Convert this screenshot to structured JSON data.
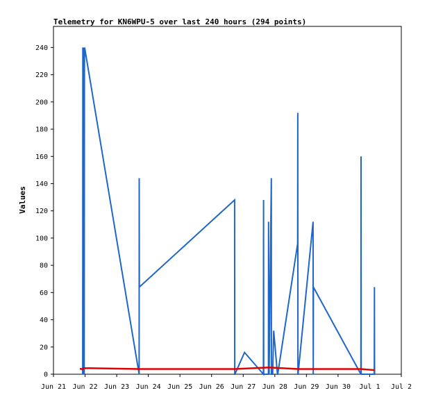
{
  "chart_data": {
    "type": "line",
    "title": "Telemetry for KN6WPU-5 over last 240 hours (294 points)",
    "xlabel": "",
    "ylabel": "Values",
    "xlim": [
      "2023-06-21",
      "2023-07-02"
    ],
    "ylim": [
      0,
      250
    ],
    "x_tick_labels": [
      "Jun 21",
      "Jun 22",
      "Jun 23",
      "Jun 24",
      "Jun 25",
      "Jun 26",
      "Jun 27",
      "Jun 28",
      "Jun 29",
      "Jun 30",
      "Jul 1",
      "Jul 2"
    ],
    "y_ticks": [
      0,
      20,
      40,
      60,
      80,
      100,
      120,
      140,
      160,
      180,
      200,
      220,
      240
    ],
    "grid": false,
    "legend": "none",
    "series": [
      {
        "color": "#1e66c8",
        "x": [
          "2023-06-21T22:10",
          "2023-06-21T22:14",
          "2023-06-21T22:18",
          "2023-06-21T22:22",
          "2023-06-21T22:26",
          "2023-06-21T22:30",
          "2023-06-21T22:40",
          "2023-06-21T22:50",
          "2023-06-21T23:00",
          "2023-06-21T23:05",
          "2023-06-21T23:10",
          "2023-06-21T23:15",
          "2023-06-21T23:20",
          "2023-06-21T23:30",
          "2023-06-21T23:40",
          "2023-06-23T17:00",
          "2023-06-23T17:06",
          "2023-06-23T17:12",
          "2023-06-26T17:30",
          "2023-06-26T17:36",
          "2023-06-26T17:42",
          "2023-06-27T01:00",
          "2023-06-27T15:20",
          "2023-06-27T15:26",
          "2023-06-27T15:32",
          "2023-06-27T19:10",
          "2023-06-27T19:16",
          "2023-06-27T19:40",
          "2023-06-27T21:20",
          "2023-06-27T21:26",
          "2023-06-27T22:20",
          "2023-06-27T23:10",
          "2023-06-28T02:00",
          "2023-06-28T02:06",
          "2023-06-28T02:12",
          "2023-06-28T17:20",
          "2023-06-28T17:26",
          "2023-06-28T17:32",
          "2023-06-28T17:38",
          "2023-06-29T05:00",
          "2023-06-29T05:10",
          "2023-06-29T05:16",
          "2023-06-30T17:20",
          "2023-06-30T17:26",
          "2023-06-30T17:32",
          "2023-07-01T03:30",
          "2023-07-01T03:36",
          "2023-07-01T03:42"
        ],
        "y": [
          0,
          80,
          240,
          72,
          0,
          10,
          48,
          62,
          80,
          92,
          0,
          240,
          0,
          225,
          240,
          0,
          144,
          64,
          128,
          0,
          0,
          16,
          0,
          128,
          0,
          0,
          112,
          0,
          144,
          0,
          0,
          32,
          0,
          0,
          0,
          96,
          192,
          0,
          0,
          112,
          0,
          64,
          0,
          160,
          0,
          0,
          64,
          0
        ]
      },
      {
        "color": "#e00000",
        "x": [
          "2023-06-21T20:00",
          "2023-06-21T21:00",
          "2023-06-21T22:00",
          "2023-06-21T23:00",
          "2023-06-23T17:00",
          "2023-06-26T17:30",
          "2023-06-27T19:30",
          "2023-06-28T17:30",
          "2023-06-30T17:30",
          "2023-07-01T03:40"
        ],
        "y": [
          4,
          4,
          3.5,
          4.5,
          3.8,
          3.8,
          5,
          3.8,
          3.8,
          3
        ]
      }
    ]
  }
}
